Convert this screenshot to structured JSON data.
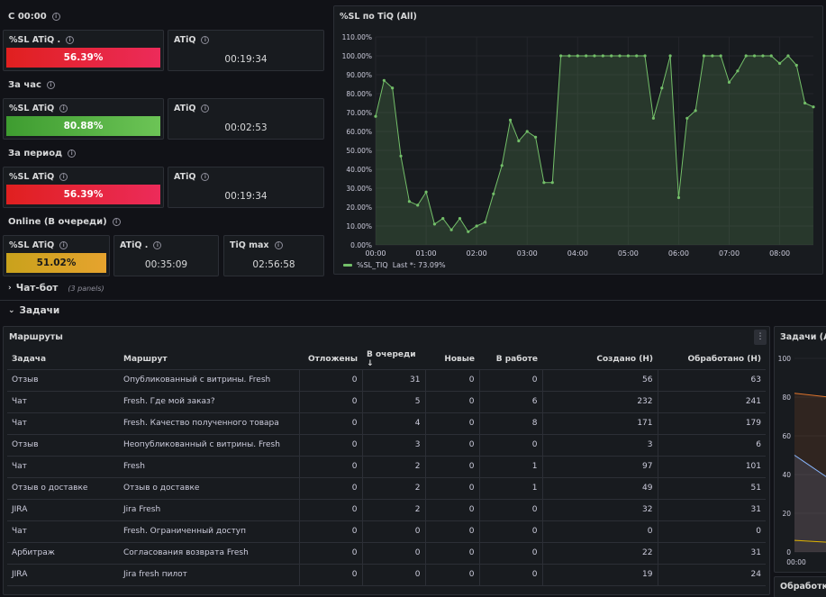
{
  "sections": {
    "since_midnight": "С 00:00",
    "hour": "За час",
    "period": "За период",
    "online": "Online (В очереди)",
    "chatbot": "Чат-бот",
    "chatbot_note": "(3 panels)",
    "tasks": "Задачи"
  },
  "stats": {
    "r1_sl_title": "%SL ATiQ .",
    "r1_sl_value": "56.39%",
    "r1_atiq_title": "ATiQ",
    "r1_atiq_value": "00:19:34",
    "r2_sl_title": "%SL ATiQ",
    "r2_sl_value": "80.88%",
    "r2_atiq_title": "ATiQ",
    "r2_atiq_value": "00:02:53",
    "r3_sl_title": "%SL ATiQ",
    "r3_sl_value": "56.39%",
    "r3_atiq_title": "ATiQ",
    "r3_atiq_value": "00:19:34",
    "r4_sl_title": "%SL ATiQ",
    "r4_sl_value": "51.02%",
    "r4_atiq_title": "ATiQ .",
    "r4_atiq_value": "00:35:09",
    "r4_max_title": "TiQ max",
    "r4_max_value": "02:56:58"
  },
  "colors": {
    "red": "#e0201f",
    "green": "#56a64b",
    "yellow": "#e0b400",
    "line": "#73bf69"
  },
  "chart_panel": {
    "title": "%SL по TiQ (All)",
    "legend_name": "%SL_TIQ",
    "legend_last": "Last *: 73.09%"
  },
  "chart_data": {
    "type": "line",
    "title": "%SL по TiQ (All)",
    "ylim": [
      0,
      110
    ],
    "y_ticks": [
      "0.00%",
      "10.00%",
      "20.00%",
      "30.00%",
      "40.00%",
      "50.00%",
      "60.00%",
      "70.00%",
      "80.00%",
      "90.00%",
      "100.00%",
      "110.00%"
    ],
    "x_ticks": [
      "00:00",
      "01:00",
      "02:00",
      "03:00",
      "04:00",
      "05:00",
      "06:00",
      "07:00",
      "08:00"
    ],
    "grid": true,
    "legend": "bottom",
    "series": [
      {
        "name": "%SL_TIQ",
        "x": [
          0,
          0.167,
          0.333,
          0.5,
          0.667,
          0.833,
          1,
          1.167,
          1.333,
          1.5,
          1.667,
          1.833,
          2,
          2.167,
          2.333,
          2.5,
          2.667,
          2.833,
          3,
          3.167,
          3.333,
          3.5,
          3.667,
          3.833,
          4,
          4.167,
          4.333,
          4.5,
          4.667,
          4.833,
          5,
          5.167,
          5.333,
          5.5,
          5.667,
          5.833,
          6,
          6.167,
          6.333,
          6.5,
          6.667,
          6.833,
          7,
          7.167,
          7.333,
          7.5,
          7.667,
          7.833,
          8,
          8.167,
          8.333,
          8.5,
          8.667
        ],
        "values": [
          68,
          87,
          83,
          47,
          23,
          21,
          28,
          11,
          14,
          8,
          14,
          7,
          10,
          12,
          27,
          42,
          66,
          55,
          60,
          57,
          33,
          33,
          100,
          100,
          100,
          100,
          100,
          100,
          100,
          100,
          100,
          100,
          100,
          67,
          83,
          100,
          25,
          67,
          71,
          100,
          100,
          100,
          86,
          92,
          100,
          100,
          100,
          100,
          96,
          100,
          95,
          75,
          73
        ]
      }
    ]
  },
  "routes_panel": {
    "title": "Маршруты",
    "columns": [
      "Задача",
      "Маршрут",
      "Отложены",
      "В очереди",
      "Новые",
      "В работе",
      "Создано (Н)",
      "Обработано (Н)"
    ],
    "sort_icon": "↓",
    "rows": [
      [
        "Отзыв",
        "Опубликованный с витрины. Fresh",
        "0",
        "31",
        "0",
        "0",
        "56",
        "63"
      ],
      [
        "Чат",
        "Fresh. Где мой заказ?",
        "0",
        "5",
        "0",
        "6",
        "232",
        "241"
      ],
      [
        "Чат",
        "Fresh. Качество полученного товара",
        "0",
        "4",
        "0",
        "8",
        "171",
        "179"
      ],
      [
        "Отзыв",
        "Неопубликованный с витрины. Fresh",
        "0",
        "3",
        "0",
        "0",
        "3",
        "6"
      ],
      [
        "Чат",
        "Fresh",
        "0",
        "2",
        "0",
        "1",
        "97",
        "101"
      ],
      [
        "Отзыв о доставке",
        "Отзыв о доставке",
        "0",
        "2",
        "0",
        "1",
        "49",
        "51"
      ],
      [
        "JIRA",
        "Jira Fresh",
        "0",
        "2",
        "0",
        "0",
        "32",
        "31"
      ],
      [
        "Чат",
        "Fresh. Ограниченный доступ",
        "0",
        "0",
        "0",
        "0",
        "0",
        "0"
      ],
      [
        "Арбитраж",
        "Согласования возврата Fresh",
        "0",
        "0",
        "0",
        "0",
        "22",
        "31"
      ],
      [
        "JIRA",
        "Jira fresh пилот",
        "0",
        "0",
        "0",
        "0",
        "19",
        "24"
      ]
    ]
  },
  "side_panel": {
    "title": "Задачи (All)",
    "y_ticks": [
      "100",
      "80",
      "60",
      "40",
      "20",
      "0"
    ],
    "x_tick": "00:00",
    "bottom_title": "Обработка"
  }
}
